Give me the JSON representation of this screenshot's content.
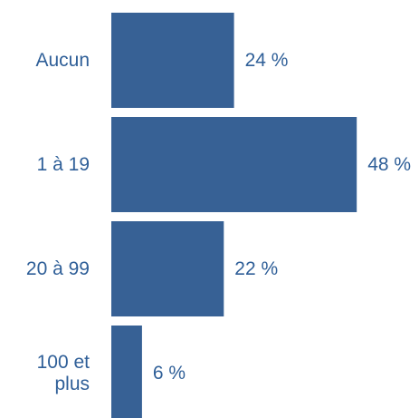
{
  "chart_data": {
    "type": "bar",
    "orientation": "horizontal",
    "categories": [
      "Aucun",
      "1 à 19",
      "20 à 99",
      "100 et plus"
    ],
    "category_lines": [
      [
        "Aucun"
      ],
      [
        "1 à 19"
      ],
      [
        "20 à 99"
      ],
      [
        "100 et",
        "plus"
      ]
    ],
    "values": [
      24,
      48,
      22,
      6
    ],
    "value_labels": [
      "24 %",
      "48 %",
      "22 %",
      "6 %"
    ],
    "title": "",
    "xlabel": "",
    "ylabel": "",
    "xlim": [
      0,
      50
    ],
    "grid": false,
    "legend": "none",
    "bar_color": "#376195",
    "label_color": "#2f5f98"
  }
}
